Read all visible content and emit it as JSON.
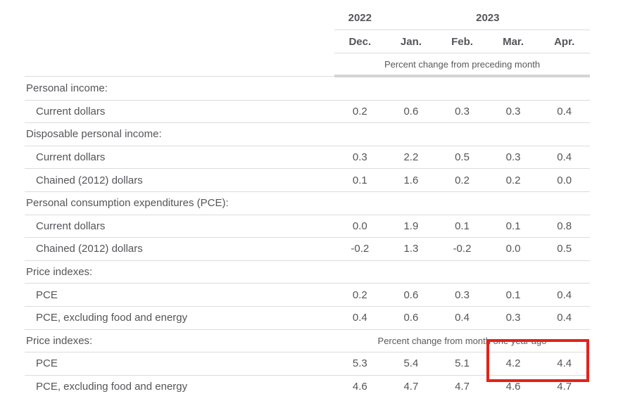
{
  "table": {
    "year_groups": [
      {
        "label": "2022",
        "span": 1
      },
      {
        "label": "2023",
        "span": 4
      }
    ],
    "months": [
      "Dec.",
      "Jan.",
      "Feb.",
      "Mar.",
      "Apr."
    ],
    "unit_header_top": "Percent change from preceding month",
    "rows": [
      {
        "type": "section",
        "label": "Personal income:"
      },
      {
        "type": "data",
        "label": "Current dollars",
        "values": [
          "0.2",
          "0.6",
          "0.3",
          "0.3",
          "0.4"
        ]
      },
      {
        "type": "section",
        "label": "Disposable personal income:"
      },
      {
        "type": "data",
        "label": "Current dollars",
        "values": [
          "0.3",
          "2.2",
          "0.5",
          "0.3",
          "0.4"
        ]
      },
      {
        "type": "data",
        "label": "Chained (2012) dollars",
        "values": [
          "0.1",
          "1.6",
          "0.2",
          "0.2",
          "0.0"
        ]
      },
      {
        "type": "section",
        "label": "Personal consumption expenditures (PCE):"
      },
      {
        "type": "data",
        "label": "Current dollars",
        "values": [
          "0.0",
          "1.9",
          "0.1",
          "0.1",
          "0.8"
        ]
      },
      {
        "type": "data",
        "label": "Chained (2012) dollars",
        "values": [
          "-0.2",
          "1.3",
          "-0.2",
          "0.0",
          "0.5"
        ]
      },
      {
        "type": "section",
        "label": "Price indexes:"
      },
      {
        "type": "data",
        "label": "PCE",
        "values": [
          "0.2",
          "0.6",
          "0.3",
          "0.1",
          "0.4"
        ]
      },
      {
        "type": "data",
        "label": "PCE, excluding food and energy",
        "values": [
          "0.4",
          "0.6",
          "0.4",
          "0.3",
          "0.4"
        ]
      },
      {
        "type": "section_with_unit",
        "label": "Price indexes:",
        "unit": "Percent change from month one year ago"
      },
      {
        "type": "data",
        "label": "PCE",
        "values": [
          "5.3",
          "5.4",
          "5.1",
          "4.2",
          "4.4"
        ]
      },
      {
        "type": "data",
        "label": "PCE, excluding food and energy",
        "values": [
          "4.6",
          "4.7",
          "4.7",
          "4.6",
          "4.7"
        ]
      }
    ]
  },
  "highlight": {
    "color": "#e3231a"
  }
}
